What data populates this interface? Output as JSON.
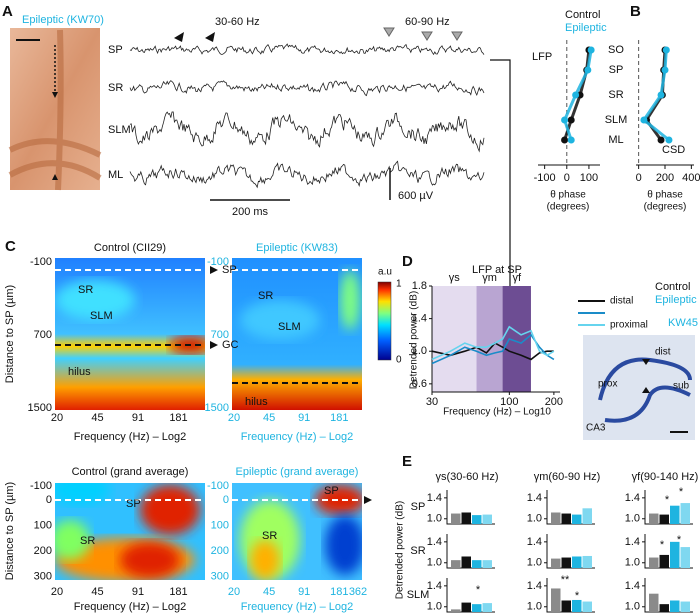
{
  "panel_a": {
    "label": "A",
    "title": "Epileptic (KW70)",
    "band_low": "30-60 Hz",
    "band_high": "60-90 Hz",
    "layers": [
      "SP",
      "SR",
      "SLM",
      "ML"
    ],
    "time_scale": "200 ms",
    "voltage_scale": "600 µV"
  },
  "panel_b": {
    "label": "B",
    "layers": [
      "SO",
      "SP",
      "SR",
      "SLM",
      "ML"
    ],
    "xlabel_line1": "θ  phase",
    "xlabel_line2": "(degrees)",
    "lfp": {
      "title": "LFP",
      "xlim": [
        -130,
        150
      ],
      "xticks": [
        -100,
        0,
        100
      ],
      "series": [
        {
          "name": "Control",
          "color": "#111111",
          "values": [
            100,
            90,
            60,
            20,
            -10
          ]
        },
        {
          "name": "Epileptic",
          "color": "#1eb4e0",
          "values": [
            110,
            95,
            40,
            -10,
            20
          ]
        }
      ]
    },
    "csd": {
      "title": "CSD",
      "xlim": [
        -20,
        420
      ],
      "xticks": [
        0,
        200,
        400
      ],
      "series": [
        {
          "color": "#111111",
          "values": [
            200,
            190,
            180,
            60,
            170
          ]
        },
        {
          "color": "#1eb4e0",
          "values": [
            210,
            200,
            170,
            40,
            230
          ]
        }
      ]
    }
  },
  "panel_c": {
    "label": "C",
    "titles": [
      "Control (CII29)",
      "Epileptic (KW83)",
      "Control (grand average)",
      "Epileptic (grand average)"
    ],
    "ylabel": "Distance to SP (µm)",
    "xlabel": "Frequency (Hz) – Log2",
    "top_yticks": [
      "-100",
      "700",
      "1500"
    ],
    "bottom_yticks": [
      "-100",
      "0",
      "100",
      "200",
      "300"
    ],
    "xticks": [
      "20",
      "45",
      "91",
      "181"
    ],
    "xticks_last": "362",
    "regions": [
      "SR",
      "SLM",
      "hilus",
      "SP",
      "GC"
    ],
    "colorbar": [
      "a.u",
      "1",
      "0"
    ]
  },
  "panel_d": {
    "label": "D",
    "title": "LFP at SP",
    "bands": [
      "γs",
      "γm",
      "γf"
    ],
    "band_edges": [
      30,
      60,
      90,
      140
    ],
    "ylabel": "Detrended power (dB)",
    "xlabel": "Frequency (Hz) – Log10",
    "log_x": true,
    "xlim": [
      30,
      220
    ],
    "xticks": [
      30,
      100,
      200
    ],
    "ylim": [
      0.5,
      1.8
    ],
    "yticks": [
      0.6,
      {
        "value": 1,
        "label": "1.0"
      },
      1.4,
      1.8
    ],
    "x": [
      30,
      40,
      50,
      60,
      70,
      80,
      90,
      100,
      120,
      140,
      160,
      180,
      200
    ],
    "series": [
      {
        "name": "distal",
        "color": "#111111",
        "values": [
          1.0,
          0.95,
          1.0,
          1.05,
          0.98,
          1.1,
          1.05,
          1.0,
          0.95,
          0.9,
          0.98,
          1.0,
          1.0
        ]
      },
      {
        "color": "#1a8cc8",
        "values": [
          0.85,
          0.95,
          1.05,
          1.0,
          0.95,
          0.98,
          1.0,
          1.15,
          1.1,
          1.2,
          1.05,
          0.95,
          0.9
        ]
      },
      {
        "name": "proximal",
        "color": "#66d4ee",
        "values": [
          0.9,
          1.0,
          1.1,
          1.05,
          1.05,
          1.1,
          1.15,
          1.3,
          1.2,
          1.25,
          1.0,
          0.95,
          1.0
        ]
      }
    ],
    "conditions": [
      "Control",
      "Epileptic"
    ],
    "animal": "KW45",
    "image_labels": [
      "dist",
      "prox",
      "sub",
      "CA3"
    ]
  },
  "panel_e": {
    "label": "E",
    "columns": [
      "γs(30-60 Hz)",
      "γm(60-90 Hz)",
      "γf(90-140 Hz)"
    ],
    "rows": [
      "SP",
      "SR",
      "SLM"
    ],
    "ylabel": "Detrended power (dB)",
    "ylim": [
      0.9,
      1.55
    ],
    "yticks": [
      {
        "value": 1,
        "label": "1.0"
      },
      1.4
    ],
    "colors": [
      "#8a8a8a",
      "#111111",
      "#1eb4e0",
      "#7fd8f0"
    ],
    "values": [
      [
        [
          1.1,
          1.12,
          1.07,
          1.08
        ],
        [
          1.12,
          1.1,
          1.08,
          1.2
        ],
        [
          1.1,
          1.08,
          1.25,
          1.3
        ]
      ],
      [
        [
          1.05,
          1.12,
          1.05,
          1.05
        ],
        [
          1.08,
          1.1,
          1.12,
          1.13
        ],
        [
          1.1,
          1.15,
          1.4,
          1.3
        ]
      ],
      [
        [
          0.95,
          1.08,
          1.05,
          1.07
        ],
        [
          1.35,
          1.12,
          1.13,
          1.1
        ],
        [
          1.25,
          1.05,
          1.12,
          1.1
        ]
      ]
    ],
    "stars": [
      "*",
      "*",
      "*",
      "*",
      "*",
      "**",
      "*"
    ]
  }
}
